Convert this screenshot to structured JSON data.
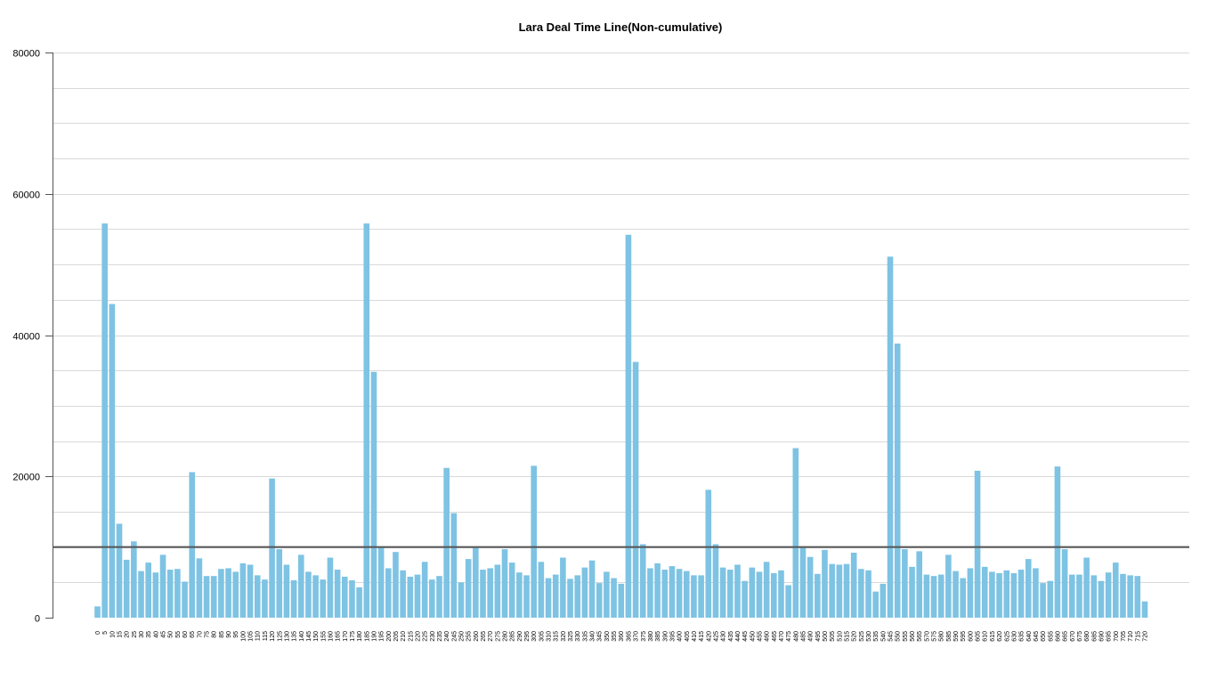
{
  "colors": {
    "bar": "#7ec3e3",
    "grid": "#d9d9d9",
    "axis": "#555555",
    "reference_line": "#555555",
    "background": "#ffffff"
  },
  "chart_data": {
    "type": "bar",
    "title": "Lara Deal Time Line(Non-cumulative)",
    "xlabel": "",
    "ylabel": "",
    "ylim": [
      0,
      80000
    ],
    "yticks": [
      0,
      20000,
      40000,
      60000,
      80000
    ],
    "ytick_labels": [
      "0",
      "20000",
      "40000",
      "60000",
      "80000"
    ],
    "reference_line": 10000,
    "grid": true,
    "categories": [
      "0",
      "5",
      "10",
      "15",
      "20",
      "25",
      "30",
      "35",
      "40",
      "45",
      "50",
      "55",
      "60",
      "65",
      "70",
      "75",
      "80",
      "85",
      "90",
      "95",
      "100",
      "105",
      "110",
      "115",
      "120",
      "125",
      "130",
      "135",
      "140",
      "145",
      "150",
      "155",
      "160",
      "165",
      "170",
      "175",
      "180",
      "185",
      "190",
      "195",
      "200",
      "205",
      "210",
      "215",
      "220",
      "225",
      "230",
      "235",
      "240",
      "245",
      "250",
      "255",
      "260",
      "265",
      "270",
      "275",
      "280",
      "285",
      "290",
      "295",
      "300",
      "305",
      "310",
      "315",
      "320",
      "325",
      "330",
      "335",
      "340",
      "345",
      "350",
      "355",
      "360",
      "365",
      "370",
      "375",
      "380",
      "385",
      "390",
      "395",
      "400",
      "405",
      "410",
      "415",
      "420",
      "425",
      "430",
      "435",
      "440",
      "445",
      "450",
      "455",
      "460",
      "465",
      "470",
      "475",
      "480",
      "485",
      "490",
      "495",
      "500",
      "505",
      "510",
      "515",
      "520",
      "525",
      "530",
      "535",
      "540",
      "545",
      "550",
      "555",
      "560",
      "565",
      "570",
      "575",
      "580",
      "585",
      "590",
      "595",
      "600",
      "605",
      "610",
      "615",
      "620",
      "625",
      "630",
      "635",
      "640",
      "645",
      "650",
      "655",
      "660",
      "665",
      "670",
      "675",
      "680",
      "685",
      "690",
      "695",
      "700",
      "705",
      "710",
      "715",
      "720"
    ],
    "values": [
      1600,
      55800,
      44400,
      13300,
      8200,
      10800,
      6600,
      7800,
      6400,
      8900,
      6800,
      6900,
      5100,
      20600,
      8400,
      5900,
      5900,
      6900,
      7000,
      6500,
      7700,
      7500,
      6000,
      5400,
      19700,
      9700,
      7500,
      5300,
      8900,
      6500,
      6000,
      5400,
      8500,
      6800,
      5800,
      5300,
      4300,
      55800,
      34800,
      10000,
      7000,
      9300,
      6700,
      5800,
      6100,
      7900,
      5400,
      5900,
      21200,
      14800,
      5000,
      8300,
      9900,
      6800,
      7000,
      7500,
      9700,
      7800,
      6400,
      6000,
      21500,
      7900,
      5600,
      6100,
      8500,
      5500,
      6000,
      7100,
      8100,
      4900,
      6500,
      5600,
      4800,
      54200,
      36200,
      10400,
      7000,
      7700,
      6800,
      7300,
      6900,
      6600,
      6000,
      6000,
      18100,
      10400,
      7100,
      6800,
      7500,
      5200,
      7100,
      6500,
      7900,
      6300,
      6700,
      4600,
      24000,
      10000,
      8600,
      6200,
      9600,
      7600,
      7500,
      7600,
      9200,
      6900,
      6700,
      3700,
      4800,
      51100,
      38800,
      9700,
      7200,
      9400,
      6100,
      5900,
      6100,
      8900,
      6600,
      5600,
      7000,
      20800,
      7200,
      6500,
      6300,
      6700,
      6300,
      6800,
      8300,
      7000,
      4900,
      5200,
      21400,
      9700,
      6100,
      6100,
      8500,
      6000,
      5200,
      6400,
      7800,
      6200,
      6000,
      5900,
      2300
    ]
  }
}
